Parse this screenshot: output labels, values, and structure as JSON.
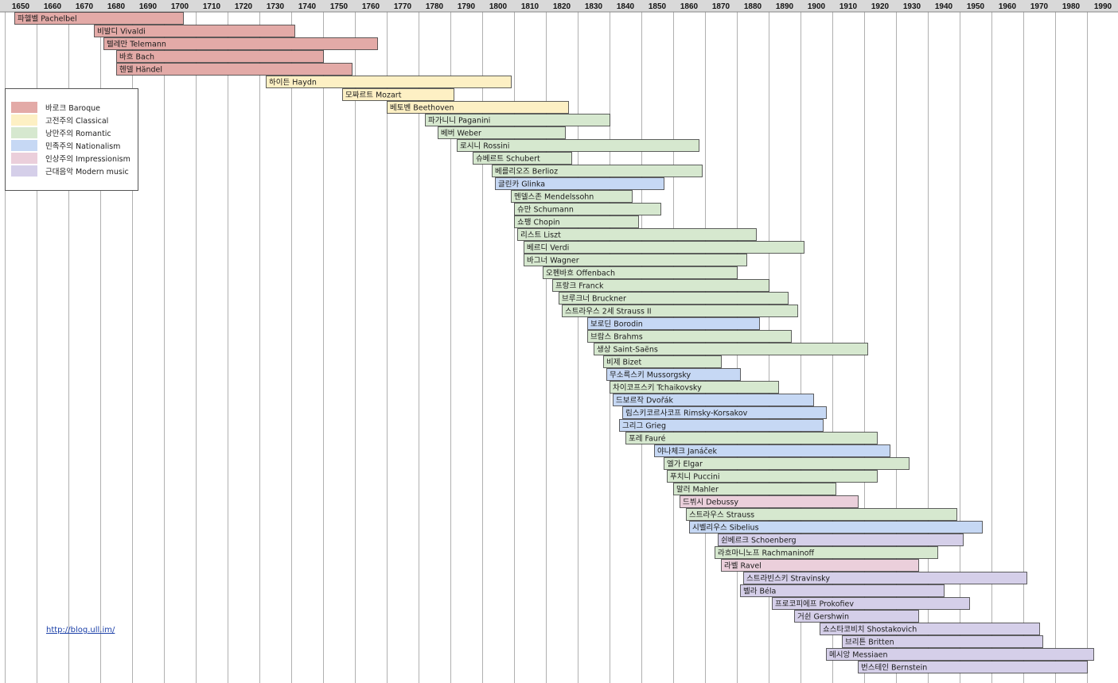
{
  "chart_data": {
    "type": "bar",
    "subtype": "timeline-gantt",
    "x_axis_ticks": [
      1650,
      1660,
      1670,
      1680,
      1690,
      1700,
      1710,
      1720,
      1730,
      1740,
      1750,
      1760,
      1770,
      1780,
      1790,
      1800,
      1810,
      1820,
      1830,
      1840,
      1850,
      1860,
      1870,
      1880,
      1890,
      1900,
      1910,
      1920,
      1930,
      1940,
      1950,
      1960,
      1970,
      1980,
      1990
    ],
    "xlim": [
      1650,
      1995
    ],
    "grid": true,
    "legend_position": "left",
    "periods": [
      {
        "key": "baroque",
        "label": "바로크 Baroque",
        "color": "#e3aaa7"
      },
      {
        "key": "classical",
        "label": "고전주의 Classical",
        "color": "#fdf0c4"
      },
      {
        "key": "romantic",
        "label": "낭만주의 Romantic",
        "color": "#d6e8cf"
      },
      {
        "key": "nationalism",
        "label": "민족주의 Nationalism",
        "color": "#c6d8f4"
      },
      {
        "key": "impressionism",
        "label": "인상주의 Impressionism",
        "color": "#ebcfdb"
      },
      {
        "key": "modern",
        "label": "근대음악 Modern music",
        "color": "#d5cfe9"
      }
    ],
    "composers": [
      {
        "name": "파헬벨 Pachelbel",
        "start": 1653,
        "end": 1706,
        "period": "baroque"
      },
      {
        "name": "비발디 Vivaldi",
        "start": 1678,
        "end": 1741,
        "period": "baroque"
      },
      {
        "name": "텔레만 Telemann",
        "start": 1681,
        "end": 1767,
        "period": "baroque"
      },
      {
        "name": "바흐 Bach",
        "start": 1685,
        "end": 1750,
        "period": "baroque"
      },
      {
        "name": "헨델 Händel",
        "start": 1685,
        "end": 1759,
        "period": "baroque"
      },
      {
        "name": "하이든 Haydn",
        "start": 1732,
        "end": 1809,
        "period": "classical"
      },
      {
        "name": "모짜르트 Mozart",
        "start": 1756,
        "end": 1791,
        "period": "classical"
      },
      {
        "name": "베토벤 Beethoven",
        "start": 1770,
        "end": 1827,
        "period": "classical"
      },
      {
        "name": "파가니니 Paganini",
        "start": 1782,
        "end": 1840,
        "period": "romantic"
      },
      {
        "name": "베버 Weber",
        "start": 1786,
        "end": 1826,
        "period": "romantic"
      },
      {
        "name": "로시니 Rossini",
        "start": 1792,
        "end": 1868,
        "period": "romantic"
      },
      {
        "name": "슈베르트 Schubert",
        "start": 1797,
        "end": 1828,
        "period": "romantic"
      },
      {
        "name": "베를리오즈 Berlioz",
        "start": 1803,
        "end": 1869,
        "period": "romantic"
      },
      {
        "name": "글린카 Glinka",
        "start": 1804,
        "end": 1857,
        "period": "nationalism"
      },
      {
        "name": "멘델스존 Mendelssohn",
        "start": 1809,
        "end": 1847,
        "period": "romantic"
      },
      {
        "name": "슈만 Schumann",
        "start": 1810,
        "end": 1856,
        "period": "romantic"
      },
      {
        "name": "쇼팽 Chopin",
        "start": 1810,
        "end": 1849,
        "period": "romantic"
      },
      {
        "name": "리스트 Liszt",
        "start": 1811,
        "end": 1886,
        "period": "romantic"
      },
      {
        "name": "베르디 Verdi",
        "start": 1813,
        "end": 1901,
        "period": "romantic"
      },
      {
        "name": "바그너 Wagner",
        "start": 1813,
        "end": 1883,
        "period": "romantic"
      },
      {
        "name": "오펜바흐 Offenbach",
        "start": 1819,
        "end": 1880,
        "period": "romantic"
      },
      {
        "name": "프랑크 Franck",
        "start": 1822,
        "end": 1890,
        "period": "romantic"
      },
      {
        "name": "브루크너 Bruckner",
        "start": 1824,
        "end": 1896,
        "period": "romantic"
      },
      {
        "name": "스트라우스 2세 Strauss II",
        "start": 1825,
        "end": 1899,
        "period": "romantic"
      },
      {
        "name": "보로딘 Borodin",
        "start": 1833,
        "end": 1887,
        "period": "nationalism"
      },
      {
        "name": "브람스 Brahms",
        "start": 1833,
        "end": 1897,
        "period": "romantic"
      },
      {
        "name": "생상 Saint-Saëns",
        "start": 1835,
        "end": 1921,
        "period": "romantic"
      },
      {
        "name": "비제 Bizet",
        "start": 1838,
        "end": 1875,
        "period": "romantic"
      },
      {
        "name": "무소륵스키 Mussorgsky",
        "start": 1839,
        "end": 1881,
        "period": "nationalism"
      },
      {
        "name": "차이코프스키 Tchaikovsky",
        "start": 1840,
        "end": 1893,
        "period": "romantic"
      },
      {
        "name": "드보르작 Dvořák",
        "start": 1841,
        "end": 1904,
        "period": "nationalism"
      },
      {
        "name": "림스키코르사코프 Rimsky-Korsakov",
        "start": 1844,
        "end": 1908,
        "period": "nationalism"
      },
      {
        "name": "그리그 Grieg",
        "start": 1843,
        "end": 1907,
        "period": "nationalism"
      },
      {
        "name": "포레 Fauré",
        "start": 1845,
        "end": 1924,
        "period": "romantic"
      },
      {
        "name": "야나체크 Janáček",
        "start": 1854,
        "end": 1928,
        "period": "nationalism"
      },
      {
        "name": "엘가 Elgar",
        "start": 1857,
        "end": 1934,
        "period": "romantic"
      },
      {
        "name": "푸치니 Puccini",
        "start": 1858,
        "end": 1924,
        "period": "romantic"
      },
      {
        "name": "말러 Mahler",
        "start": 1860,
        "end": 1911,
        "period": "romantic"
      },
      {
        "name": "드뷔시 Debussy",
        "start": 1862,
        "end": 1918,
        "period": "impressionism"
      },
      {
        "name": "스트라우스 Strauss",
        "start": 1864,
        "end": 1949,
        "period": "romantic"
      },
      {
        "name": "시벨리우스 Sibelius",
        "start": 1865,
        "end": 1957,
        "period": "nationalism"
      },
      {
        "name": "쉰베르크 Schoenberg",
        "start": 1874,
        "end": 1951,
        "period": "modern"
      },
      {
        "name": "라흐마니노프 Rachmaninoff",
        "start": 1873,
        "end": 1943,
        "period": "romantic"
      },
      {
        "name": "라벨 Ravel",
        "start": 1875,
        "end": 1937,
        "period": "impressionism"
      },
      {
        "name": "스트라빈스키 Stravinsky",
        "start": 1882,
        "end": 1971,
        "period": "modern"
      },
      {
        "name": "벨라 Béla",
        "start": 1881,
        "end": 1945,
        "period": "modern"
      },
      {
        "name": "프로코피에프 Prokofiev",
        "start": 1891,
        "end": 1953,
        "period": "modern"
      },
      {
        "name": "거쉰 Gershwin",
        "start": 1898,
        "end": 1937,
        "period": "modern"
      },
      {
        "name": "쇼스타코비치 Shostakovich",
        "start": 1906,
        "end": 1975,
        "period": "modern"
      },
      {
        "name": "브리튼 Britten",
        "start": 1913,
        "end": 1976,
        "period": "modern"
      },
      {
        "name": "메시앙 Messiaen",
        "start": 1908,
        "end": 1992,
        "period": "modern"
      },
      {
        "name": "번스테인 Bernstein",
        "start": 1918,
        "end": 1990,
        "period": "modern"
      }
    ]
  },
  "footer": {
    "link_text": "http://blog.ull.im/"
  }
}
